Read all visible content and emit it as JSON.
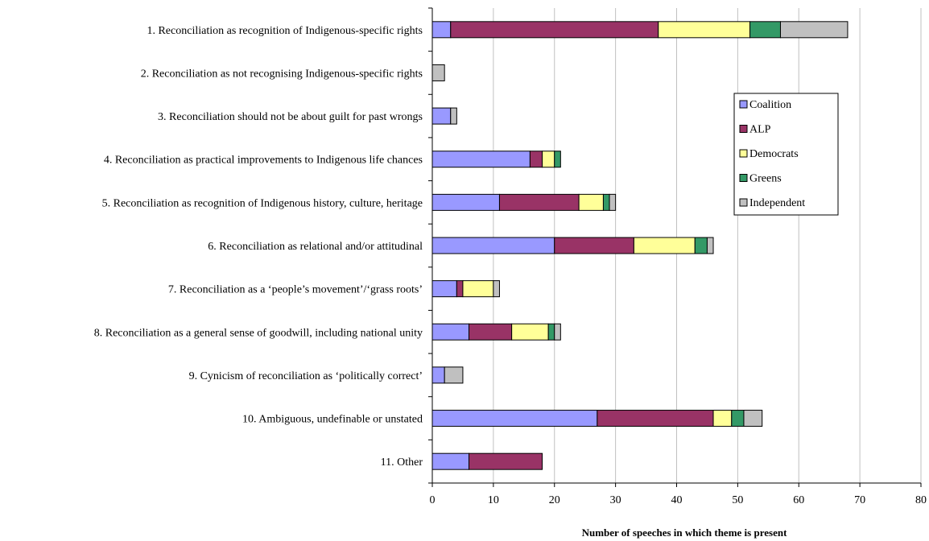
{
  "chart_data": {
    "type": "bar",
    "orientation": "horizontal",
    "stacked": true,
    "title": "",
    "xlabel": "Number of speeches in which theme is present",
    "ylabel": "",
    "xlim": [
      0,
      80
    ],
    "xticks": [
      0,
      10,
      20,
      30,
      40,
      50,
      60,
      70,
      80
    ],
    "grid": "vertical",
    "legend_position": "right",
    "categories": [
      "1. Reconciliation as recognition of Indigenous-specific rights",
      "2. Reconciliation as not recognising Indigenous-specific rights",
      "3. Reconciliation should not be about guilt for past wrongs",
      "4. Reconciliation as practical improvements to Indigenous life chances",
      "5. Reconciliation as recognition of Indigenous history, culture, heritage",
      "6. Reconciliation as relational and/or attitudinal",
      "7. Reconciliation as a ‘people’s movement’/‘grass roots’",
      "8. Reconciliation as a general sense of goodwill, including national unity",
      "9. Cynicism of reconciliation as ‘politically correct’",
      "10. Ambiguous, undefinable or unstated",
      "11. Other"
    ],
    "series": [
      {
        "name": "Coalition",
        "color": "#9999ff",
        "values": [
          3,
          0,
          3,
          16,
          11,
          20,
          4,
          6,
          2,
          27,
          6
        ]
      },
      {
        "name": "ALP",
        "color": "#993366",
        "values": [
          34,
          0,
          0,
          2,
          13,
          13,
          1,
          7,
          0,
          19,
          12
        ]
      },
      {
        "name": "Democrats",
        "color": "#ffff99",
        "values": [
          15,
          0,
          0,
          2,
          4,
          10,
          5,
          6,
          0,
          3,
          0
        ]
      },
      {
        "name": "Greens",
        "color": "#339966",
        "values": [
          5,
          0,
          0,
          1,
          1,
          2,
          0,
          1,
          0,
          2,
          0
        ]
      },
      {
        "name": "Independent",
        "color": "#c0c0c0",
        "values": [
          11,
          2,
          1,
          0,
          1,
          1,
          1,
          1,
          3,
          3,
          0
        ]
      }
    ]
  }
}
